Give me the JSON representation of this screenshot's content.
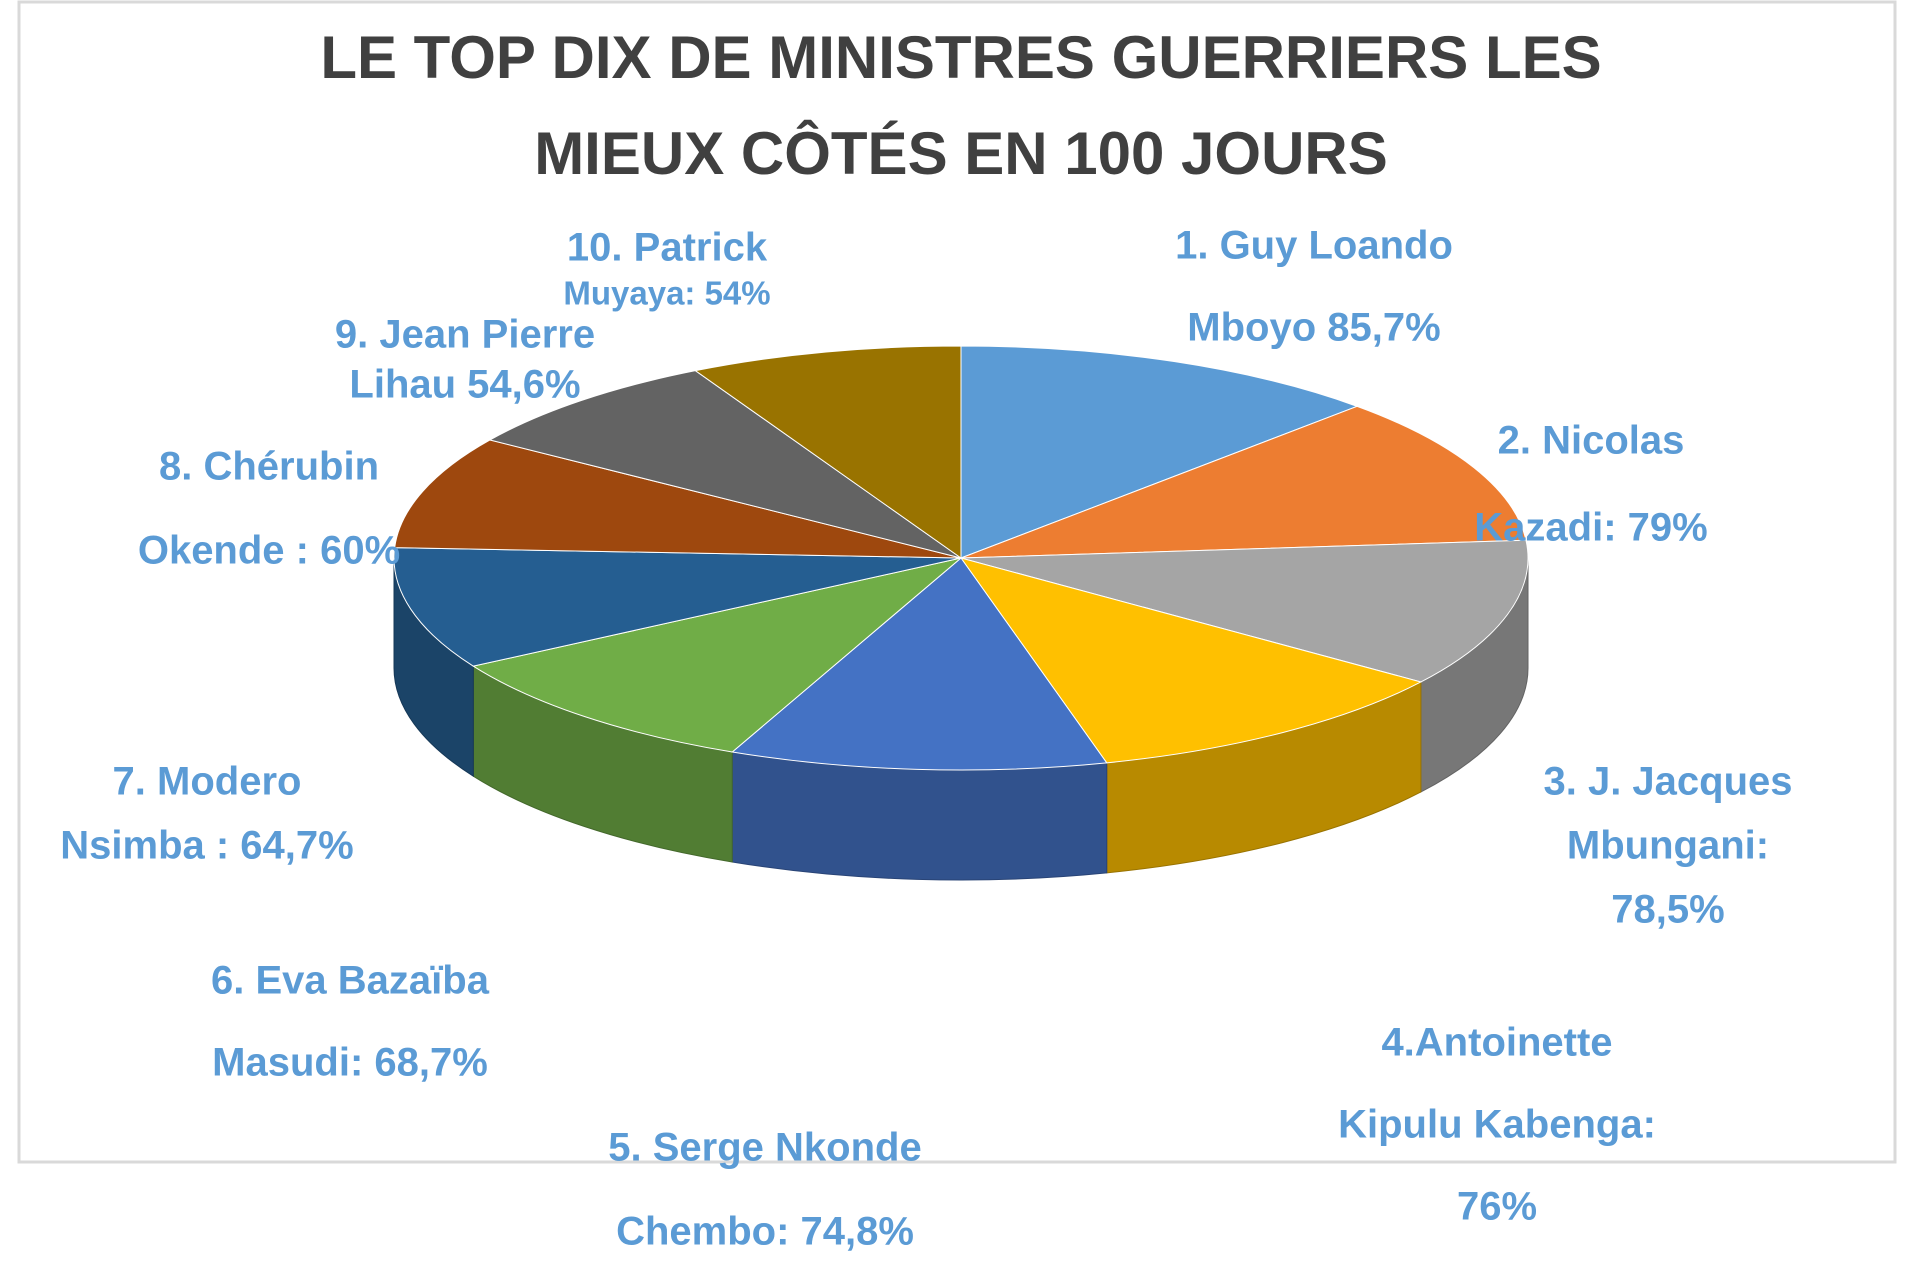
{
  "chart_data": {
    "type": "pie3d",
    "title": [
      "LE TOP DIX DE MINISTRES GUERRIERS LES",
      "MIEUX CÔTÉS EN 100 JOURS"
    ],
    "labels": [
      [
        "1. Guy Loando",
        "Mboyo 85,7%"
      ],
      [
        "2. Nicolas",
        "Kazadi: 79%"
      ],
      [
        "3. J. Jacques",
        "Mbungani:",
        "78,5%"
      ],
      [
        "4.Antoinette",
        "Kipulu Kabenga:",
        "76%"
      ],
      [
        "5. Serge Nkonde",
        "Chembo: 74,8%"
      ],
      [
        "6. Eva Bazaïba",
        "Masudi: 68,7%"
      ],
      [
        "7. Modero",
        "Nsimba : 64,7%"
      ],
      [
        "8. Chérubin",
        "Okende : 60%"
      ],
      [
        "9. Jean Pierre",
        "Lihau 54,6%"
      ],
      [
        "10. Patrick",
        "Muyaya: 54%"
      ]
    ],
    "values": [
      85.7,
      79,
      78.5,
      76,
      74.8,
      68.7,
      64.7,
      60,
      54.6,
      54
    ],
    "colors": [
      "#5b9bd5",
      "#ed7d31",
      "#a5a5a5",
      "#ffc000",
      "#4472c4",
      "#70ad47",
      "#255e91",
      "#9e480e",
      "#636363",
      "#997300"
    ]
  }
}
